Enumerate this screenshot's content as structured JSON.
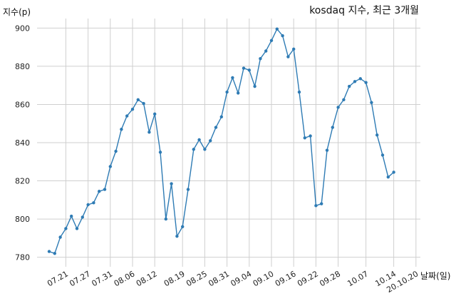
{
  "chart_data": {
    "type": "line",
    "title": "kosdaq 지수, 최근 3개월",
    "xlabel": "날짜(일)",
    "ylabel": "지수(p)",
    "ylim": [
      775,
      905
    ],
    "yticks": [
      780,
      800,
      820,
      840,
      860,
      880,
      900
    ],
    "xtick_labels": [
      "07.21",
      "07.27",
      "07.31",
      "08.06",
      "08.12",
      "08.19",
      "08.25",
      "08.31",
      "09.04",
      "09.10",
      "09.16",
      "09.22",
      "09.28",
      "10.07",
      "10.14",
      "20.10.20"
    ],
    "xtick_index": [
      3,
      7,
      11,
      15,
      19,
      24,
      28,
      32,
      36,
      40,
      44,
      48,
      52,
      57,
      62,
      66
    ],
    "grid": true,
    "legend": "none",
    "color": "#2e7bb4",
    "series": [
      {
        "values": [
          783,
          782,
          790.5,
          795,
          801.5,
          795,
          801,
          807.5,
          808.5,
          814.5,
          815.5,
          827.5,
          835.5,
          847,
          854,
          857.5,
          862.5,
          860.5,
          845.5,
          855,
          835,
          800,
          818.5,
          791,
          796,
          815.5,
          836.5,
          841.5,
          836.5,
          841,
          848,
          853.5,
          866.5,
          874,
          866,
          879,
          878,
          869.5,
          884,
          888,
          893.5,
          899.5,
          896,
          885,
          889,
          866.5,
          842.5,
          843.5,
          807,
          808,
          836,
          848,
          858.5,
          862.5,
          869.5,
          872,
          873.5,
          871.5,
          861,
          844,
          833.5,
          822,
          824.5
        ]
      }
    ]
  }
}
